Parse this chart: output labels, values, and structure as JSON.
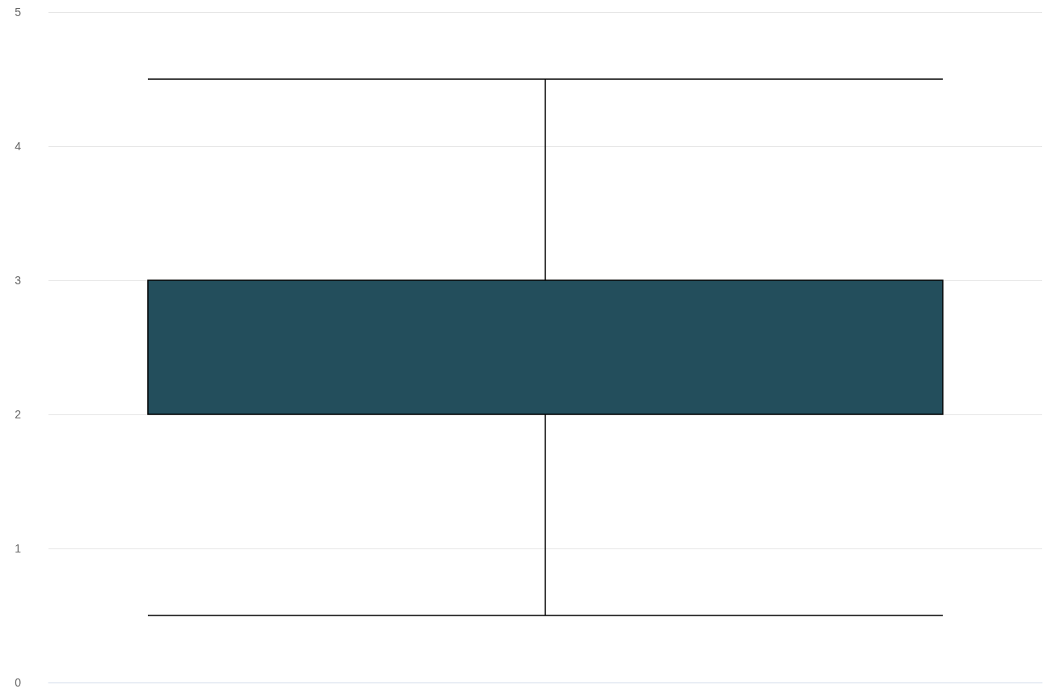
{
  "chart_data": {
    "type": "box",
    "categories": [
      null
    ],
    "boxes": [
      {
        "low": 0.5,
        "q1": 2,
        "median": 3,
        "q3": 3,
        "high": 4.5
      }
    ],
    "color": "#234e5c",
    "ylim": [
      0,
      5
    ],
    "yticks": [
      0,
      1,
      2,
      3,
      4,
      5
    ],
    "grid": "y",
    "tick_labels": "y"
  }
}
